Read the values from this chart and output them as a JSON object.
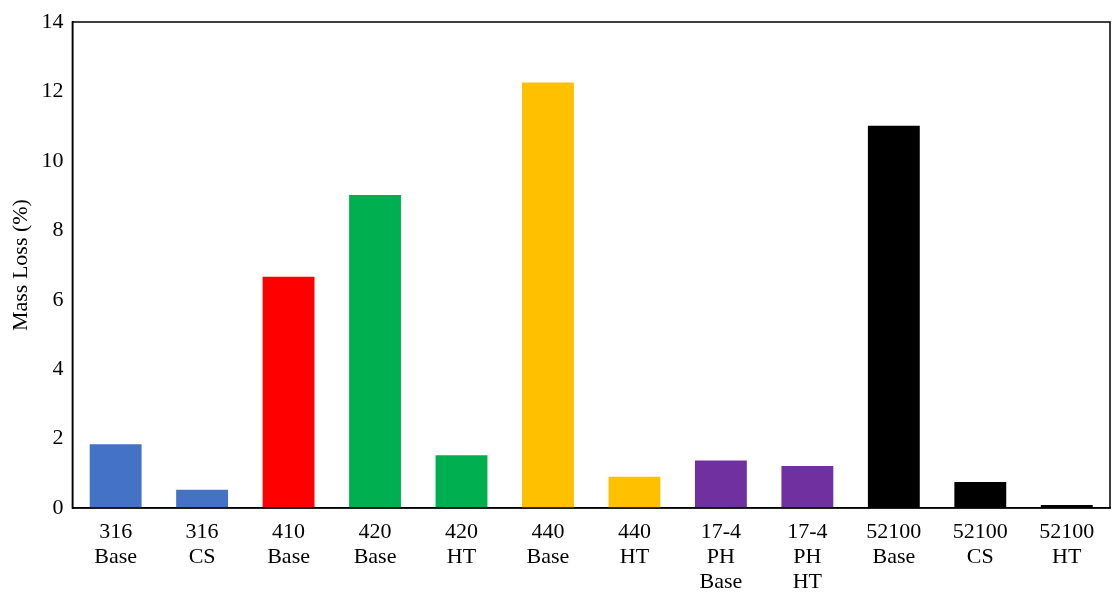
{
  "chart_data": {
    "type": "bar",
    "ylabel": "Mass Loss (%)",
    "categories": [
      "316\nBase",
      "316\nCS",
      "410\nBase",
      "420\nBase",
      "420\nHT",
      "440\nBase",
      "440\nHT",
      "17-4\nPH\nBase",
      "17-4\nPH\nHT",
      "52100\nBase",
      "52100\nCS",
      "52100\nHT"
    ],
    "values": [
      1.84,
      0.53,
      6.66,
      9.02,
      1.52,
      12.26,
      0.9,
      1.37,
      1.21,
      11.01,
      0.75,
      0.09
    ],
    "colors": [
      "#4472c4",
      "#4472c4",
      "#ff0000",
      "#00b050",
      "#00b050",
      "#ffc000",
      "#ffc000",
      "#7030a0",
      "#7030a0",
      "#000000",
      "#000000",
      "#000000"
    ],
    "ylim": [
      0,
      14
    ],
    "yticks": [
      0,
      2,
      4,
      6,
      8,
      10,
      12,
      14
    ],
    "grid": false,
    "legend": false
  }
}
